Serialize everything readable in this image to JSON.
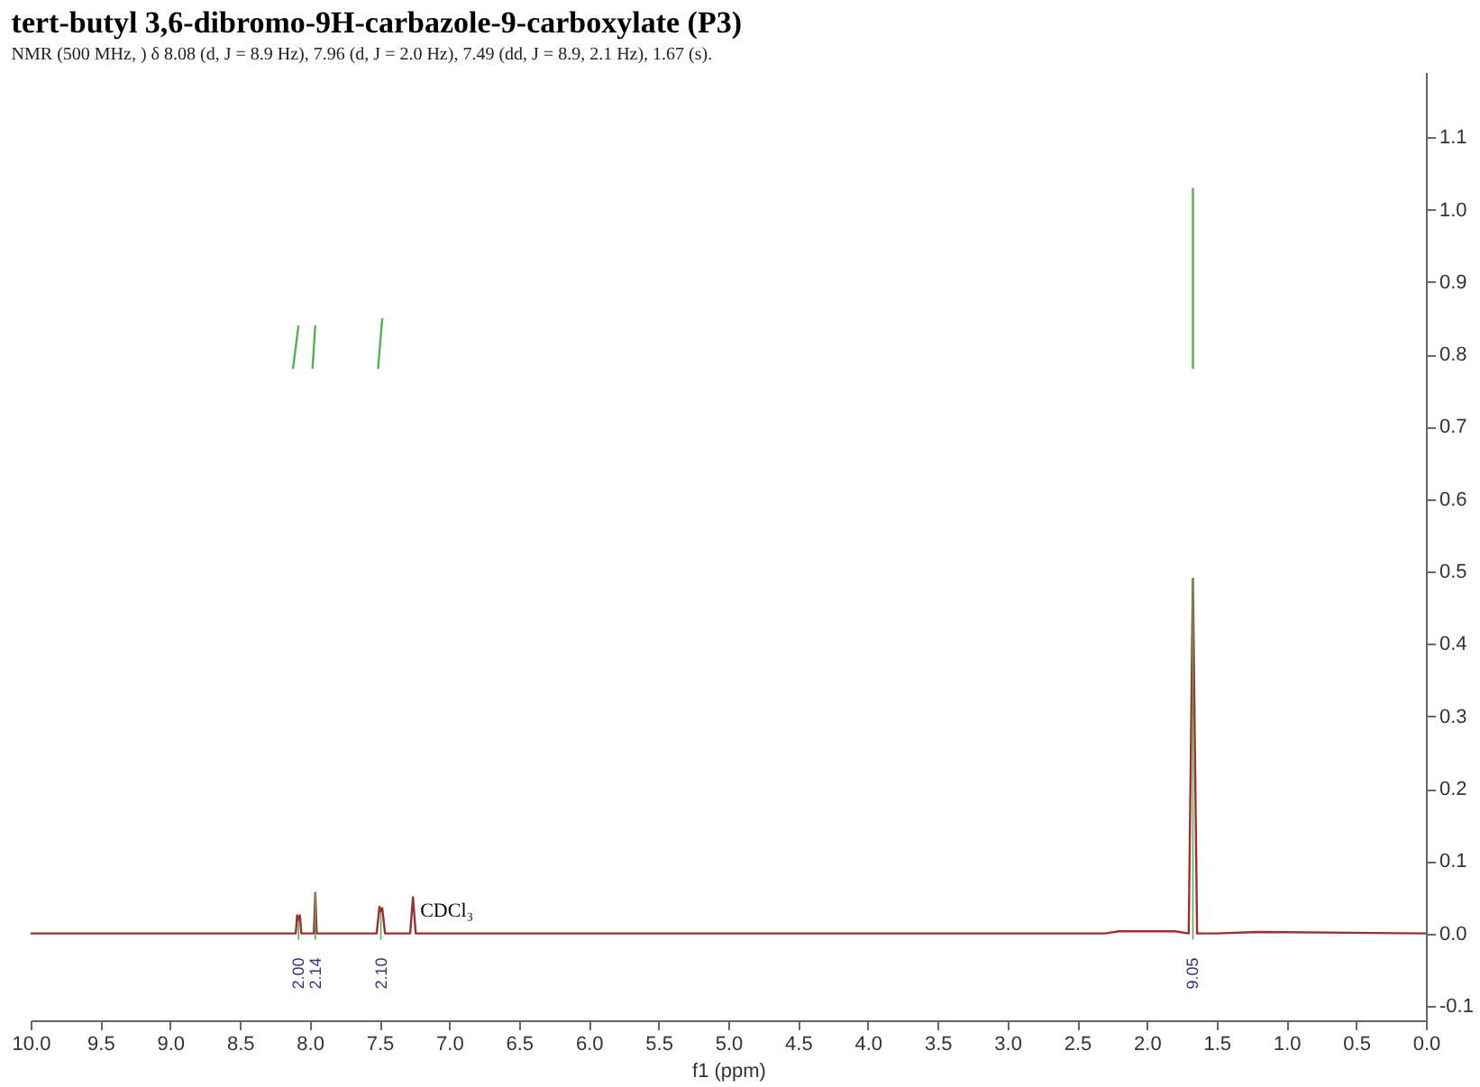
{
  "chart_data": {
    "type": "line",
    "title": "tert-butyl 3,6-dibromo-9H-carbazole-9-carboxylate (P3)",
    "subtitle": "NMR (500 MHz, ) δ 8.08 (d, J = 8.9 Hz), 7.96 (d, J = 2.0 Hz), 7.49 (dd, J = 8.9, 2.1 Hz), 1.67 (s).",
    "xlabel": "f1 (ppm)",
    "series": [
      {
        "color": "#9b3030",
        "x": [
          10.0,
          8.2,
          8.1,
          8.09,
          8.08,
          8.07,
          8.06,
          8.0,
          7.97,
          7.96,
          7.95,
          7.52,
          7.5,
          7.49,
          7.48,
          7.46,
          7.28,
          7.26,
          7.24,
          2.3,
          2.2,
          1.8,
          1.7,
          1.67,
          1.64,
          1.5,
          1.2,
          0.0
        ],
        "values": [
          0,
          0,
          0,
          0.025,
          0.018,
          0.025,
          0,
          0,
          0,
          0.056,
          0,
          0,
          0.037,
          0.03,
          0.035,
          0,
          0,
          0.05,
          0,
          0,
          0.003,
          0.003,
          0,
          0.49,
          0,
          0,
          0.002,
          0
        ]
      },
      {
        "color": "#5aae5a",
        "x": [
          8.12,
          8.08
        ],
        "values": [
          0.78,
          0.84
        ]
      },
      {
        "color": "#5aae5a",
        "x": [
          7.98,
          7.96
        ],
        "values": [
          0.78,
          0.84
        ]
      },
      {
        "color": "#5aae5a",
        "x": [
          7.51,
          7.48
        ],
        "values": [
          0.78,
          0.85
        ]
      },
      {
        "color": "#5aae5a",
        "x": [
          1.67,
          1.67
        ],
        "values": [
          0.78,
          1.03
        ]
      }
    ],
    "annotations": [
      {
        "text": "2.00",
        "x": 8.08,
        "y": 0.018
      },
      {
        "text": "2.14",
        "x": 7.96,
        "y": 0.056
      },
      {
        "text": "2.10",
        "x": 7.49,
        "y": 0.03
      },
      {
        "text": "9.05",
        "x": 1.67,
        "y": 0.49
      },
      {
        "text": "CDCl₃",
        "x": 7.26,
        "y": 0.05
      }
    ],
    "xlim": [
      10.0,
      0.0
    ],
    "ylim": [
      -0.12,
      1.19
    ],
    "xticks": [
      {
        "value": 10,
        "label": "10.0"
      },
      9.5,
      {
        "value": 9,
        "label": "9.0"
      },
      8.5,
      {
        "value": 8,
        "label": "8.0"
      },
      7.5,
      {
        "value": 7,
        "label": "7.0"
      },
      6.5,
      {
        "value": 6,
        "label": "6.0"
      },
      5.5,
      {
        "value": 5,
        "label": "5.0"
      },
      4.5,
      {
        "value": 4,
        "label": "4.0"
      },
      3.5,
      {
        "value": 3,
        "label": "3.0"
      },
      2.5,
      {
        "value": 2,
        "label": "2.0"
      },
      1.5,
      {
        "value": 1,
        "label": "1.0"
      },
      0.5,
      {
        "value": 0,
        "label": "0.0"
      }
    ],
    "yticks": [
      -0.1,
      {
        "value": 0,
        "label": "0.0"
      },
      0.1,
      0.2,
      0.3,
      0.4,
      0.5,
      0.6,
      0.7,
      0.8,
      0.9,
      {
        "value": 1,
        "label": "1.0"
      },
      1.1
    ],
    "grid": false,
    "legend": false
  }
}
